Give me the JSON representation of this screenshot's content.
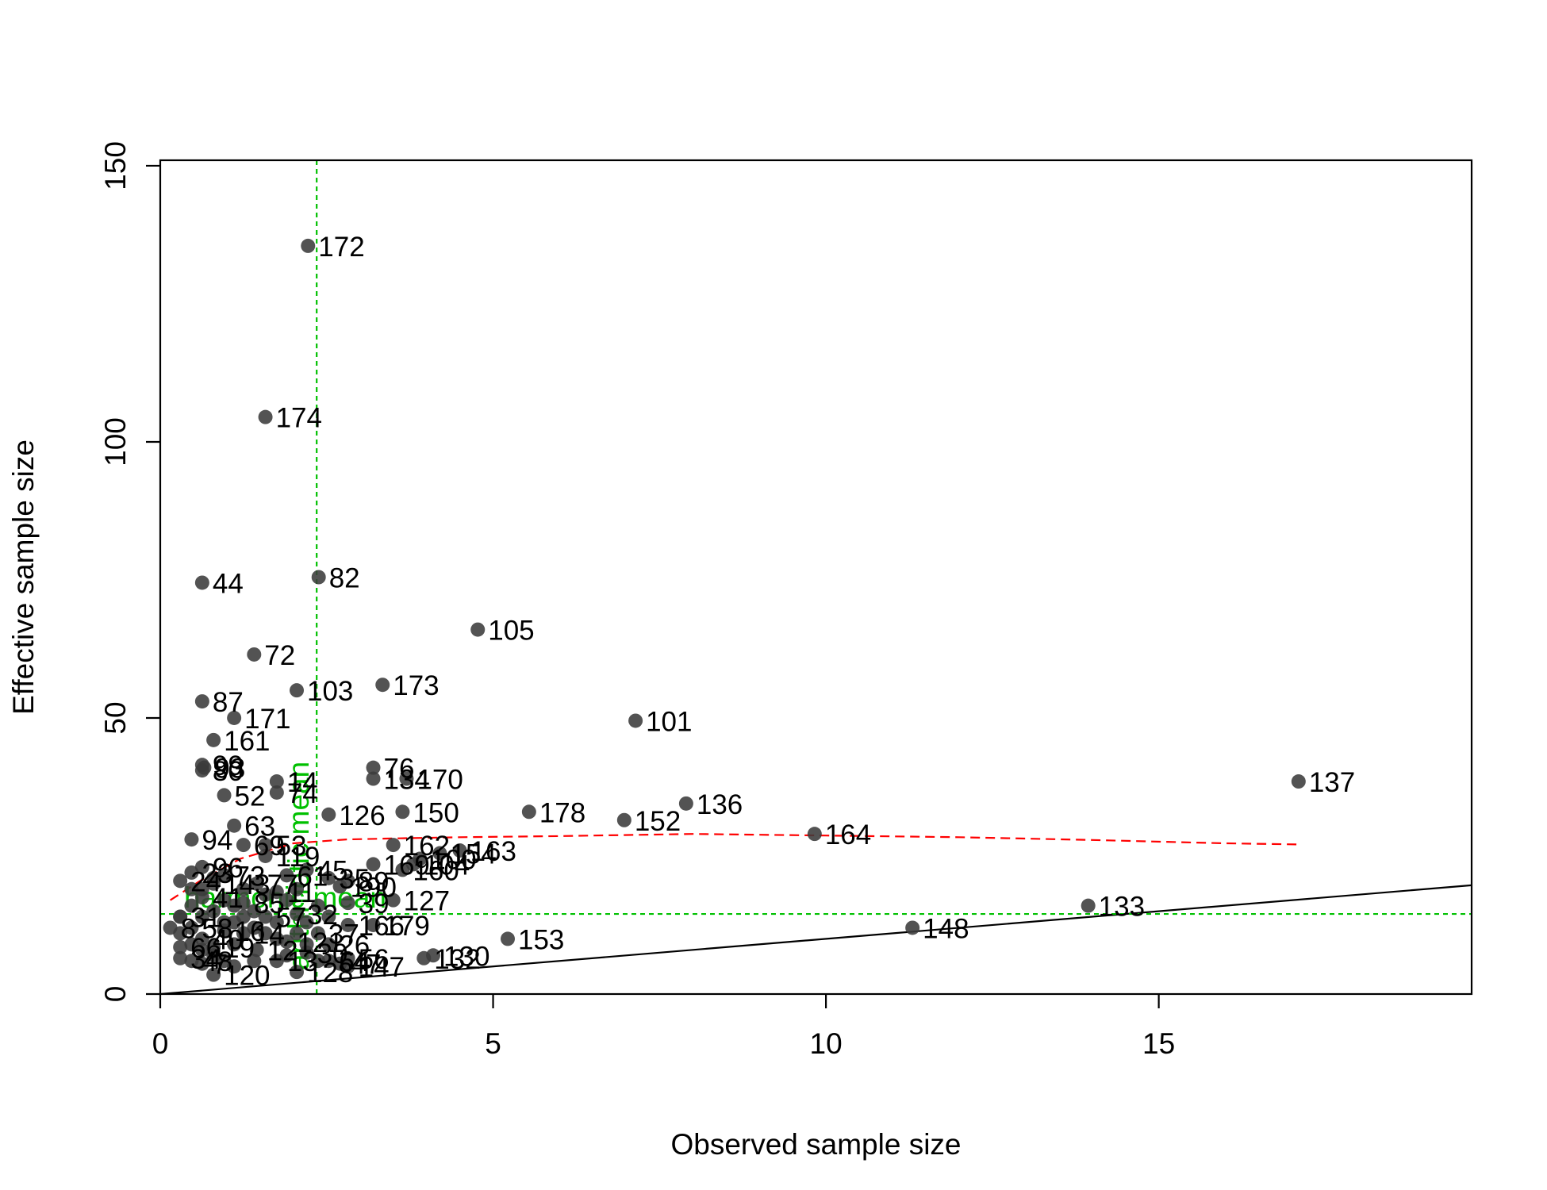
{
  "chart_data": {
    "type": "scatter",
    "xlabel": "Observed sample size",
    "ylabel": "Effective sample size",
    "xlim": [
      0,
      19.7
    ],
    "ylim": [
      0,
      151
    ],
    "x_ticks": [
      0,
      5,
      10,
      15
    ],
    "x_tick_labels": [
      "0",
      "5",
      "10",
      "15"
    ],
    "y_ticks": [
      0,
      50,
      100,
      150
    ],
    "y_tick_labels": [
      "0",
      "50",
      "100",
      "150"
    ],
    "grid": false,
    "point_color": "#3b3b3b",
    "points": [
      {
        "label": "172",
        "x": 2.22,
        "y": 135.5
      },
      {
        "label": "174",
        "x": 1.58,
        "y": 104.5
      },
      {
        "label": "82",
        "x": 2.38,
        "y": 75.5
      },
      {
        "label": "44",
        "x": 0.63,
        "y": 74.5
      },
      {
        "label": "105",
        "x": 4.77,
        "y": 66
      },
      {
        "label": "72",
        "x": 1.41,
        "y": 61.5
      },
      {
        "label": "173",
        "x": 3.34,
        "y": 56
      },
      {
        "label": "103",
        "x": 2.05,
        "y": 55
      },
      {
        "label": "87",
        "x": 0.63,
        "y": 53
      },
      {
        "label": "171",
        "x": 1.11,
        "y": 50
      },
      {
        "label": "101",
        "x": 7.14,
        "y": 49.5
      },
      {
        "label": "161",
        "x": 0.8,
        "y": 46
      },
      {
        "label": "99",
        "x": 0.63,
        "y": 41.5
      },
      {
        "label": "93",
        "x": 0.66,
        "y": 41
      },
      {
        "label": "80",
        "x": 0.63,
        "y": 40.5
      },
      {
        "label": "76",
        "x": 3.2,
        "y": 41
      },
      {
        "label": "134",
        "x": 3.2,
        "y": 39
      },
      {
        "label": "170",
        "x": 3.7,
        "y": 39
      },
      {
        "label": "137",
        "x": 17.1,
        "y": 38.5
      },
      {
        "label": "14",
        "x": 1.75,
        "y": 38.5
      },
      {
        "label": "52",
        "x": 0.96,
        "y": 36
      },
      {
        "label": "74",
        "x": 1.75,
        "y": 36.5
      },
      {
        "label": "136",
        "x": 7.9,
        "y": 34.5
      },
      {
        "label": "126",
        "x": 2.53,
        "y": 32.5
      },
      {
        "label": "150",
        "x": 3.64,
        "y": 33
      },
      {
        "label": "178",
        "x": 5.54,
        "y": 33
      },
      {
        "label": "152",
        "x": 6.97,
        "y": 31.5
      },
      {
        "label": "63",
        "x": 1.11,
        "y": 30.5
      },
      {
        "label": "164",
        "x": 9.83,
        "y": 29
      },
      {
        "label": "94",
        "x": 0.47,
        "y": 28
      },
      {
        "label": "69",
        "x": 1.25,
        "y": 27
      },
      {
        "label": "53",
        "x": 1.58,
        "y": 27
      },
      {
        "label": "162",
        "x": 3.5,
        "y": 27
      },
      {
        "label": "163",
        "x": 4.5,
        "y": 26
      },
      {
        "label": "154",
        "x": 4.2,
        "y": 25.5
      },
      {
        "label": "119",
        "x": 1.58,
        "y": 25
      },
      {
        "label": "100",
        "x": 3.9,
        "y": 24.5
      },
      {
        "label": "104",
        "x": 3.8,
        "y": 23.5
      },
      {
        "label": "169",
        "x": 3.2,
        "y": 23.5
      },
      {
        "label": "96",
        "x": 0.63,
        "y": 23
      },
      {
        "label": "160",
        "x": 3.64,
        "y": 22.5
      },
      {
        "label": "23",
        "x": 0.47,
        "y": 22
      },
      {
        "label": "45",
        "x": 2.2,
        "y": 22.5
      },
      {
        "label": "61",
        "x": 1.9,
        "y": 21.5
      },
      {
        "label": "73",
        "x": 0.96,
        "y": 21.5
      },
      {
        "label": "35",
        "x": 2.53,
        "y": 21
      },
      {
        "label": "24",
        "x": 0.3,
        "y": 20.5
      },
      {
        "label": "89",
        "x": 2.82,
        "y": 20.5
      },
      {
        "label": "77",
        "x": 1.45,
        "y": 20
      },
      {
        "label": "143",
        "x": 0.8,
        "y": 20
      },
      {
        "label": "190",
        "x": 2.7,
        "y": 19.5
      },
      {
        "label": "11",
        "x": 1.75,
        "y": 18.5
      },
      {
        "label": "127",
        "x": 3.5,
        "y": 17
      },
      {
        "label": "41",
        "x": 0.63,
        "y": 17.5
      },
      {
        "label": "85",
        "x": 1.25,
        "y": 16.5
      },
      {
        "label": "39",
        "x": 2.82,
        "y": 16.5
      },
      {
        "label": "133",
        "x": 13.94,
        "y": 16
      },
      {
        "label": "31",
        "x": 0.3,
        "y": 14
      },
      {
        "label": "57",
        "x": 1.58,
        "y": 14
      },
      {
        "label": "32",
        "x": 2.05,
        "y": 14.5
      },
      {
        "label": "166",
        "x": 2.82,
        "y": 12.5
      },
      {
        "label": "179",
        "x": 3.2,
        "y": 12.5
      },
      {
        "label": "8",
        "x": 0.15,
        "y": 12
      },
      {
        "label": "148",
        "x": 11.3,
        "y": 12
      },
      {
        "label": "58",
        "x": 0.47,
        "y": 12
      },
      {
        "label": "16",
        "x": 0.96,
        "y": 11.5
      },
      {
        "label": "14b",
        "x": 1.25,
        "y": 11
      },
      {
        "label": "37",
        "x": 2.37,
        "y": 11
      },
      {
        "label": "153",
        "x": 5.22,
        "y": 10
      },
      {
        "label": "40",
        "x": 0.63,
        "y": 10
      },
      {
        "label": "121",
        "x": 1.9,
        "y": 9.5
      },
      {
        "label": "26",
        "x": 2.53,
        "y": 9
      },
      {
        "label": "66",
        "x": 0.3,
        "y": 8.5
      },
      {
        "label": "19",
        "x": 0.8,
        "y": 8.5
      },
      {
        "label": "12",
        "x": 1.45,
        "y": 8
      },
      {
        "label": "30",
        "x": 2.2,
        "y": 7.5
      },
      {
        "label": "130",
        "x": 4.1,
        "y": 7
      },
      {
        "label": "132",
        "x": 3.96,
        "y": 6.5
      },
      {
        "label": "56",
        "x": 2.82,
        "y": 6.5
      },
      {
        "label": "34",
        "x": 0.3,
        "y": 6.5
      },
      {
        "label": "48",
        "x": 0.47,
        "y": 6
      },
      {
        "label": "13",
        "x": 1.75,
        "y": 6
      },
      {
        "label": "64",
        "x": 2.53,
        "y": 6
      },
      {
        "label": "47",
        "x": 2.7,
        "y": 5.5
      },
      {
        "label": "7",
        "x": 0.63,
        "y": 5.5
      },
      {
        "label": "147",
        "x": 2.82,
        "y": 5
      },
      {
        "label": "120",
        "x": 0.8,
        "y": 3.5
      },
      {
        "label": "128",
        "x": 2.05,
        "y": 4
      }
    ],
    "hidden_label_points": [
      [
        0.3,
        14
      ],
      [
        0.47,
        16
      ],
      [
        0.63,
        19
      ],
      [
        0.8,
        15
      ],
      [
        0.96,
        17
      ],
      [
        1.11,
        13
      ],
      [
        1.25,
        19
      ],
      [
        1.41,
        15
      ],
      [
        1.58,
        18
      ],
      [
        1.75,
        13
      ],
      [
        1.9,
        17
      ],
      [
        2.05,
        19
      ],
      [
        2.2,
        13
      ],
      [
        2.37,
        16
      ],
      [
        2.53,
        14
      ],
      [
        0.47,
        9
      ],
      [
        0.8,
        7
      ],
      [
        1.11,
        9
      ],
      [
        1.41,
        6
      ],
      [
        1.9,
        7
      ],
      [
        0.63,
        14
      ],
      [
        0.96,
        13
      ],
      [
        1.25,
        14
      ],
      [
        1.58,
        11
      ],
      [
        2.05,
        11
      ],
      [
        0.47,
        19
      ],
      [
        0.8,
        21
      ],
      [
        1.11,
        16
      ],
      [
        1.41,
        12
      ],
      [
        1.75,
        10
      ],
      [
        2.2,
        9
      ],
      [
        2.37,
        6
      ],
      [
        0.3,
        11
      ],
      [
        0.63,
        8
      ],
      [
        0.96,
        6
      ],
      [
        1.11,
        5
      ]
    ],
    "reference_lines": {
      "harmonic_mean_y": 14.5,
      "harmonic_mean_label": "harmonic mean",
      "arithmetic_mean_x": 2.35,
      "arithmetic_mean_label": "arithmetic mean",
      "ref_color": "#00c000",
      "identity_line_color": "#000000"
    },
    "trend": {
      "color": "#ff0000",
      "x": [
        0.15,
        0.6,
        1.2,
        2.0,
        2.8,
        3.6,
        4.5,
        6.0,
        8.0,
        10.0,
        12.0,
        14.0,
        16.0,
        17.1
      ],
      "y": [
        17,
        20.5,
        24.5,
        27.3,
        28,
        28.2,
        28.4,
        28.6,
        29,
        28.7,
        28.4,
        27.9,
        27.3,
        27.1
      ]
    }
  }
}
